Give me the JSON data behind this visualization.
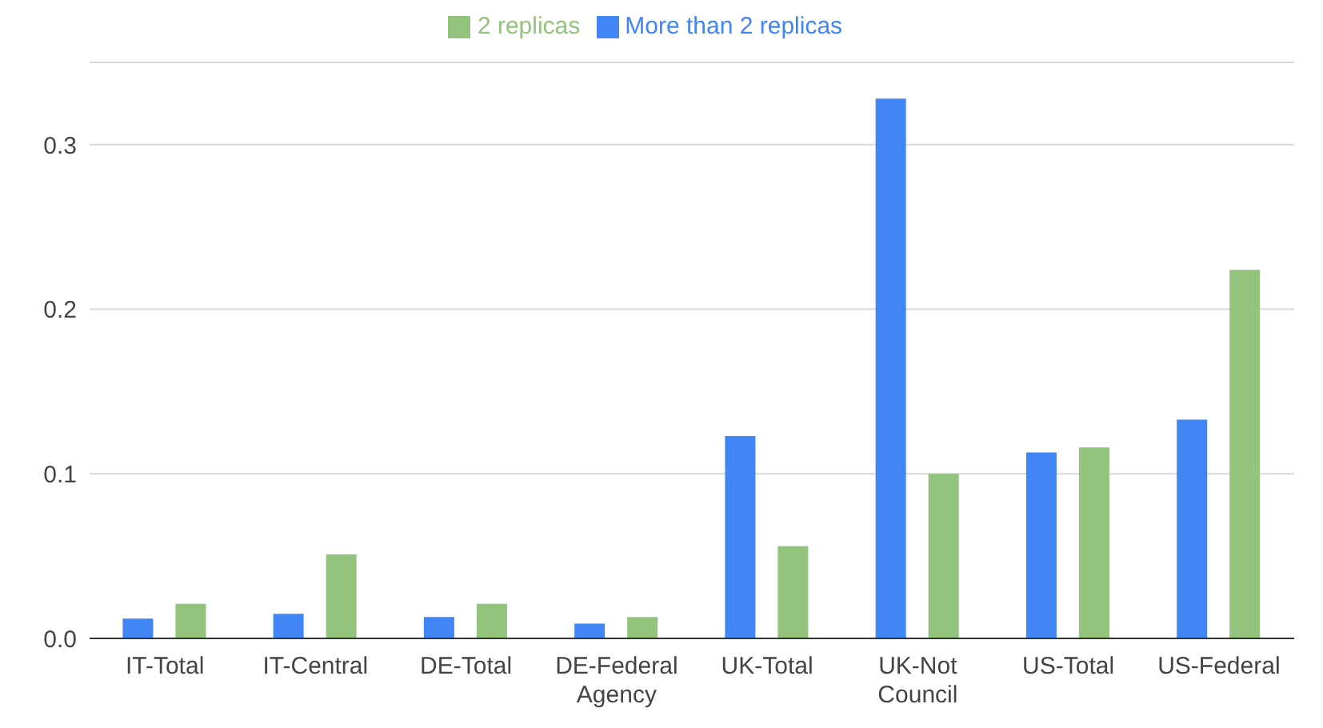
{
  "chart_data": {
    "type": "bar",
    "categories": [
      "IT-Total",
      "IT-Central",
      "DE-Total",
      "DE-Federal Agency",
      "UK-Total",
      "UK-Not Council",
      "US-Total",
      "US-Federal"
    ],
    "series": [
      {
        "name": "More than 2 replicas",
        "color": "#4285f4",
        "values": [
          0.012,
          0.015,
          0.013,
          0.009,
          0.123,
          0.328,
          0.113,
          0.133
        ]
      },
      {
        "name": "2 replicas",
        "color": "#93c47d",
        "values": [
          0.021,
          0.051,
          0.021,
          0.013,
          0.056,
          0.1,
          0.116,
          0.224
        ]
      }
    ],
    "ylim": [
      0,
      0.35
    ],
    "yticks": [
      {
        "value": 0,
        "label": "0.0"
      },
      {
        "value": 0.1,
        "label": "0.1"
      },
      {
        "value": 0.2,
        "label": "0.2"
      },
      {
        "value": 0.3,
        "label": "0.3"
      }
    ],
    "grid": "y",
    "legend": "top"
  }
}
